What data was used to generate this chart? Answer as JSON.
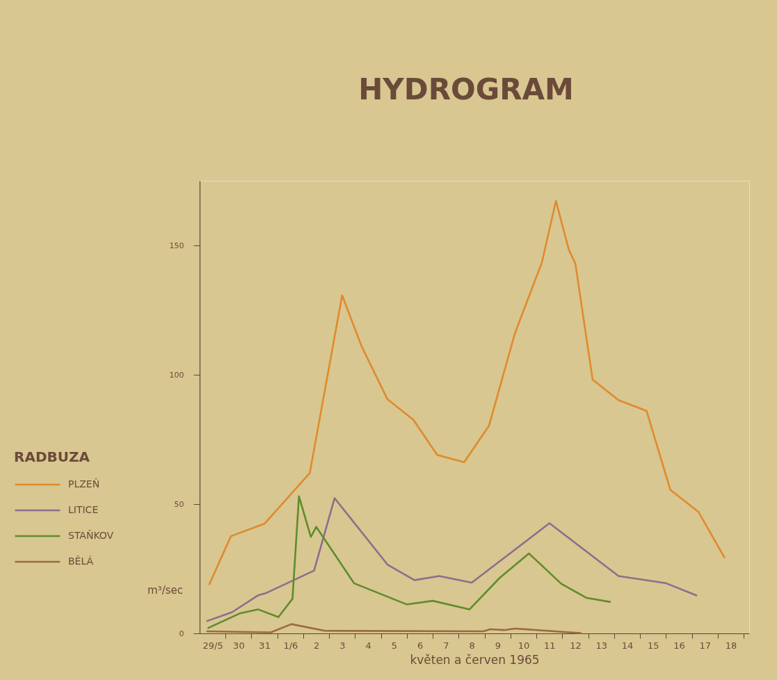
{
  "chart_data": {
    "type": "line",
    "title": "HYDROGRAM",
    "xlabel": "květen a červen 1965",
    "ylabel": "m³/sec",
    "legend_title": "RADBUZA",
    "legend": "left",
    "grid": false,
    "xlim": [
      "1965-05-29T00:00",
      "1965-06-19T05:00"
    ],
    "ylim": [
      0,
      175
    ],
    "yticks": [
      0,
      50,
      100,
      150
    ],
    "xticks": [
      {
        "value": "1965-05-29T12:00",
        "label": "29/5"
      },
      {
        "value": "1965-05-30T00:00",
        "label": null
      },
      {
        "value": "1965-05-30T12:00",
        "label": "30"
      },
      {
        "value": "1965-05-31T00:00",
        "label": null
      },
      {
        "value": "1965-05-31T12:00",
        "label": "31"
      },
      {
        "value": "1965-06-01T00:00",
        "label": null
      },
      {
        "value": "1965-06-01T12:00",
        "label": "1/6"
      },
      {
        "value": "1965-06-02T00:00",
        "label": null
      },
      {
        "value": "1965-06-02T12:00",
        "label": "2"
      },
      {
        "value": "1965-06-03T00:00",
        "label": null
      },
      {
        "value": "1965-06-03T12:00",
        "label": "3"
      },
      {
        "value": "1965-06-04T00:00",
        "label": null
      },
      {
        "value": "1965-06-04T12:00",
        "label": "4"
      },
      {
        "value": "1965-06-05T00:00",
        "label": null
      },
      {
        "value": "1965-06-05T12:00",
        "label": "5"
      },
      {
        "value": "1965-06-06T00:00",
        "label": null
      },
      {
        "value": "1965-06-06T12:00",
        "label": "6"
      },
      {
        "value": "1965-06-07T00:00",
        "label": null
      },
      {
        "value": "1965-06-07T12:00",
        "label": "7"
      },
      {
        "value": "1965-06-08T00:00",
        "label": null
      },
      {
        "value": "1965-06-08T12:00",
        "label": "8"
      },
      {
        "value": "1965-06-09T00:00",
        "label": null
      },
      {
        "value": "1965-06-09T12:00",
        "label": "9"
      },
      {
        "value": "1965-06-10T00:00",
        "label": null
      },
      {
        "value": "1965-06-10T12:00",
        "label": "10"
      },
      {
        "value": "1965-06-11T00:00",
        "label": null
      },
      {
        "value": "1965-06-11T12:00",
        "label": "11"
      },
      {
        "value": "1965-06-12T00:00",
        "label": null
      },
      {
        "value": "1965-06-12T12:00",
        "label": "12"
      },
      {
        "value": "1965-06-13T00:00",
        "label": null
      },
      {
        "value": "1965-06-13T12:00",
        "label": "13"
      },
      {
        "value": "1965-06-14T00:00",
        "label": null
      },
      {
        "value": "1965-06-14T12:00",
        "label": "14"
      },
      {
        "value": "1965-06-15T00:00",
        "label": null
      },
      {
        "value": "1965-06-15T12:00",
        "label": "15"
      },
      {
        "value": "1965-06-16T00:00",
        "label": null
      },
      {
        "value": "1965-06-16T12:00",
        "label": "16"
      },
      {
        "value": "1965-06-17T00:00",
        "label": null
      },
      {
        "value": "1965-06-17T12:00",
        "label": "17"
      },
      {
        "value": "1965-06-18T00:00",
        "label": null
      },
      {
        "value": "1965-06-18T12:00",
        "label": "18"
      },
      {
        "value": "1965-06-19T00:00",
        "label": null
      }
    ],
    "series": [
      {
        "name": "PLZEŇ",
        "color": "#e08a2c",
        "x": [
          "1965-05-29T09:00",
          "1965-05-30T05:00",
          "1965-05-31T12:00",
          "1965-06-02T06:00",
          "1965-06-03T12:00",
          "1965-06-04T06:00",
          "1965-06-05T06:00",
          "1965-06-06T06:00",
          "1965-06-07T04:00",
          "1965-06-08T05:00",
          "1965-06-09T04:00",
          "1965-06-10T04:00",
          "1965-06-11T05:00",
          "1965-06-11T18:00",
          "1965-06-12T06:00",
          "1965-06-12T12:00",
          "1965-06-13T04:00",
          "1965-06-14T04:00",
          "1965-06-15T06:00",
          "1965-06-16T04:00",
          "1965-06-17T06:00",
          "1965-06-18T06:00"
        ],
        "values": [
          19,
          37.6,
          42.4,
          62,
          130.7,
          111,
          90.5,
          82.6,
          69,
          66.2,
          80.3,
          116,
          143.4,
          167.2,
          148.3,
          143,
          98.1,
          90.2,
          86,
          55.5,
          47,
          29.4
        ]
      },
      {
        "name": "LITICE",
        "color": "#8d6e8c",
        "x": [
          "1965-05-29T07:00",
          "1965-05-30T06:00",
          "1965-05-31T06:00",
          "1965-05-31T13:00",
          "1965-06-02T10:00",
          "1965-06-03T05:00",
          "1965-06-05T06:00",
          "1965-06-06T07:00",
          "1965-06-07T06:00",
          "1965-06-08T12:00",
          "1965-06-11T12:00",
          "1965-06-14T04:00",
          "1965-06-16T00:00",
          "1965-06-17T04:00"
        ],
        "values": [
          4.8,
          8.2,
          14.7,
          15.5,
          24.3,
          52.3,
          26.6,
          20.6,
          22.2,
          19.6,
          42.6,
          22.2,
          19.4,
          14.7
        ]
      },
      {
        "name": "STAŇKOV",
        "color": "#5f8c2c",
        "x": [
          "1965-05-29T08:00",
          "1965-05-30T13:00",
          "1965-05-31T06:00",
          "1965-06-01T01:00",
          "1965-06-01T14:00",
          "1965-06-01T20:00",
          "1965-06-02T07:00",
          "1965-06-02T12:00",
          "1965-06-03T23:00",
          "1965-06-06T00:00",
          "1965-06-07T00:00",
          "1965-06-08T10:00",
          "1965-06-09T14:00",
          "1965-06-10T17:00",
          "1965-06-11T23:00",
          "1965-06-12T22:00",
          "1965-06-13T20:00"
        ],
        "values": [
          2.1,
          7.7,
          9.3,
          6.3,
          13.4,
          53.0,
          37.3,
          41.2,
          19.4,
          11.2,
          12.6,
          9.3,
          21.5,
          30.9,
          19.2,
          13.8,
          12.2
        ]
      },
      {
        "name": "BĚLÁ",
        "color": "#9c6a42",
        "x": [
          "1965-05-29T07:00",
          "1965-05-31T18:00",
          "1965-06-01T13:00",
          "1965-06-02T20:00",
          "1965-06-08T23:00",
          "1965-06-09T05:00",
          "1965-06-09T18:00",
          "1965-06-10T04:00",
          "1965-06-12T17:00"
        ],
        "values": [
          0.8,
          0.4,
          3.6,
          1.0,
          0.8,
          1.6,
          1.3,
          1.9,
          0.1
        ]
      }
    ]
  }
}
